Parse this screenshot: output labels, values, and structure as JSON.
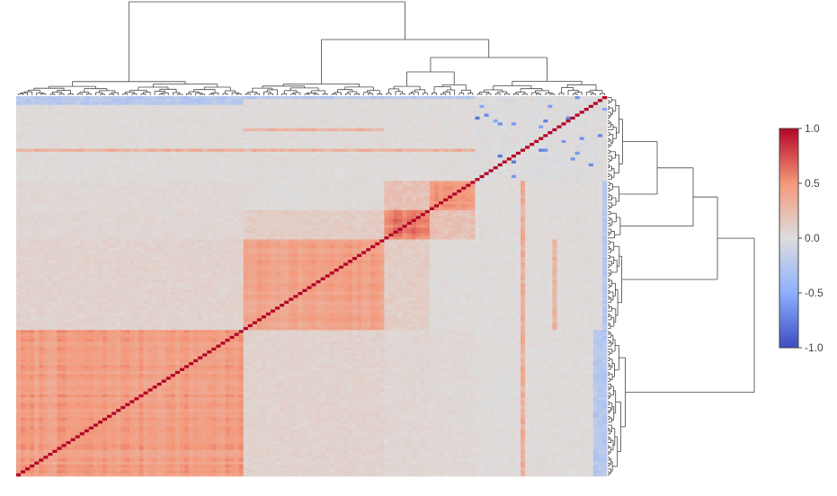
{
  "chart_data": {
    "type": "heatmap",
    "title": "",
    "xlabel": "",
    "ylabel": "",
    "n_features": 130,
    "value_range": [
      -1.0,
      1.0
    ],
    "diagonal_value": 1.0,
    "cluster_sizes": [
      50,
      31,
      10,
      10,
      29
    ],
    "cluster_within_correlation": [
      0.45,
      0.42,
      0.6,
      0.5,
      0.02
    ],
    "between_correlation": {
      "clusters_1_2": 0.08,
      "clusters_2_3": 0.12,
      "clusters_3_4": 0.2,
      "clusters_1_3": 0.05,
      "clusters_1_4": 0.04,
      "cluster_5_blue_column_with_cluster_1": -0.3
    },
    "highlighted_rows": [
      {
        "row": 0,
        "correlation_with_clusters_1_4": -0.25
      },
      {
        "row": 11,
        "correlation_with_cluster_2": 0.32
      },
      {
        "row": 18,
        "correlation_with_clusters_1_4": 0.35
      }
    ],
    "colorscale": [
      {
        "stop": 0.0,
        "color": "#3b4cc0"
      },
      {
        "stop": 0.25,
        "color": "#8db0fe"
      },
      {
        "stop": 0.5,
        "color": "#dddddd"
      },
      {
        "stop": 0.75,
        "color": "#f4987a"
      },
      {
        "stop": 1.0,
        "color": "#b40426"
      }
    ],
    "colorbar": {
      "ticks": [
        1.0,
        0.5,
        0.0,
        -0.5,
        -1.0
      ],
      "tick_labels": [
        "1.0",
        "0.5",
        "0.0",
        "-0.5",
        "-1.0"
      ],
      "orientation": "vertical",
      "placement": "right"
    },
    "dendrograms": [
      "top",
      "right"
    ],
    "dendrogram_color": "#444444",
    "seed": 7
  }
}
